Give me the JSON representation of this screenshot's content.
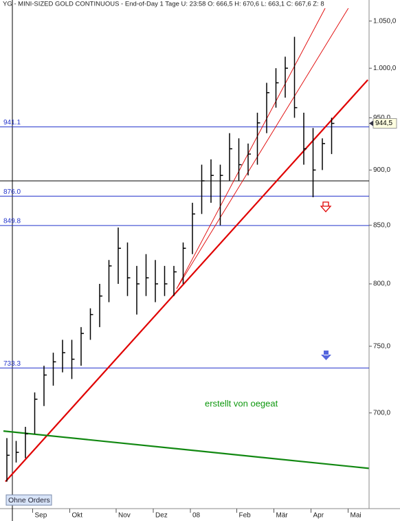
{
  "chart_data": {
    "type": "ohlc",
    "title": "YG - MINI-SIZED GOLD CONTINUOUS - End-of-Day 1 Tage  U: 23:58  O: 666,5  H: 670,6  L: 663,1  C: 667,6  Z: 8",
    "log_scale": true,
    "ylim": [
      634,
      1064
    ],
    "yticks": [
      {
        "value": 700,
        "label": "700,0"
      },
      {
        "value": 750,
        "label": "750,0"
      },
      {
        "value": 800,
        "label": "800,0"
      },
      {
        "value": 850,
        "label": "850,0"
      },
      {
        "value": 900,
        "label": "900,0"
      },
      {
        "value": 950,
        "label": "950,0"
      },
      {
        "value": 1000,
        "label": "1.000,0"
      },
      {
        "value": 1050,
        "label": "1.050,0"
      }
    ],
    "categories": [
      null,
      null,
      null,
      "Sep",
      null,
      null,
      null,
      "Okt",
      null,
      null,
      null,
      null,
      "Nov",
      null,
      null,
      null,
      "Dez",
      null,
      null,
      null,
      "08",
      null,
      null,
      null,
      null,
      "Feb",
      null,
      null,
      null,
      "Mär",
      null,
      null,
      null,
      "Apr",
      null,
      null,
      null,
      "Mai",
      null,
      null
    ],
    "color": "#000000",
    "high": [
      682,
      680,
      690,
      715,
      735,
      745,
      755,
      755,
      765,
      780,
      800,
      820,
      848,
      835,
      815,
      825,
      820,
      815,
      815,
      835,
      870,
      905,
      910,
      905,
      935,
      930,
      925,
      955,
      985,
      1000,
      1012,
      1033,
      955,
      940,
      930,
      950,
      null,
      null,
      null,
      null
    ],
    "low": [
      652,
      665,
      668,
      685,
      705,
      720,
      730,
      725,
      735,
      755,
      765,
      785,
      800,
      790,
      775,
      790,
      785,
      790,
      790,
      800,
      825,
      860,
      870,
      850,
      890,
      890,
      895,
      905,
      935,
      960,
      970,
      950,
      905,
      875,
      900,
      915,
      null,
      null,
      null,
      null
    ],
    "close": [
      670,
      672,
      685,
      710,
      728,
      738,
      745,
      740,
      760,
      775,
      790,
      815,
      830,
      805,
      800,
      805,
      800,
      800,
      810,
      830,
      860,
      890,
      895,
      895,
      920,
      905,
      915,
      945,
      975,
      985,
      1000,
      960,
      920,
      900,
      925,
      944.5,
      null,
      null,
      null,
      null
    ],
    "last_price": {
      "value": 944.5,
      "label": "944,5"
    },
    "levels": [
      {
        "value": 941.1,
        "label": "941.1"
      },
      {
        "value": 876,
        "label": "876.0"
      },
      {
        "value": 849.8,
        "label": "849.8"
      },
      {
        "value": 733.3,
        "label": "733.3"
      }
    ],
    "level_color": "#2233cc",
    "support_line": 890,
    "trendlines": [
      {
        "color": "#e00000",
        "thick": true,
        "x": [
          -0.15,
          38.9
        ],
        "y": [
          652,
          988
        ]
      },
      {
        "color": "#e00000",
        "thick": false,
        "x": [
          18.3,
          34.3
        ],
        "y": [
          796,
          1064
        ]
      },
      {
        "color": "#e00000",
        "thick": false,
        "x": [
          18.3,
          36.8
        ],
        "y": [
          796,
          1064
        ]
      },
      {
        "color": "#118811",
        "thick": true,
        "x": [
          -0.37,
          39
        ],
        "y": [
          687,
          661
        ]
      }
    ],
    "annotation": "erstellt von oegeat",
    "button": "Ohne Orders"
  }
}
